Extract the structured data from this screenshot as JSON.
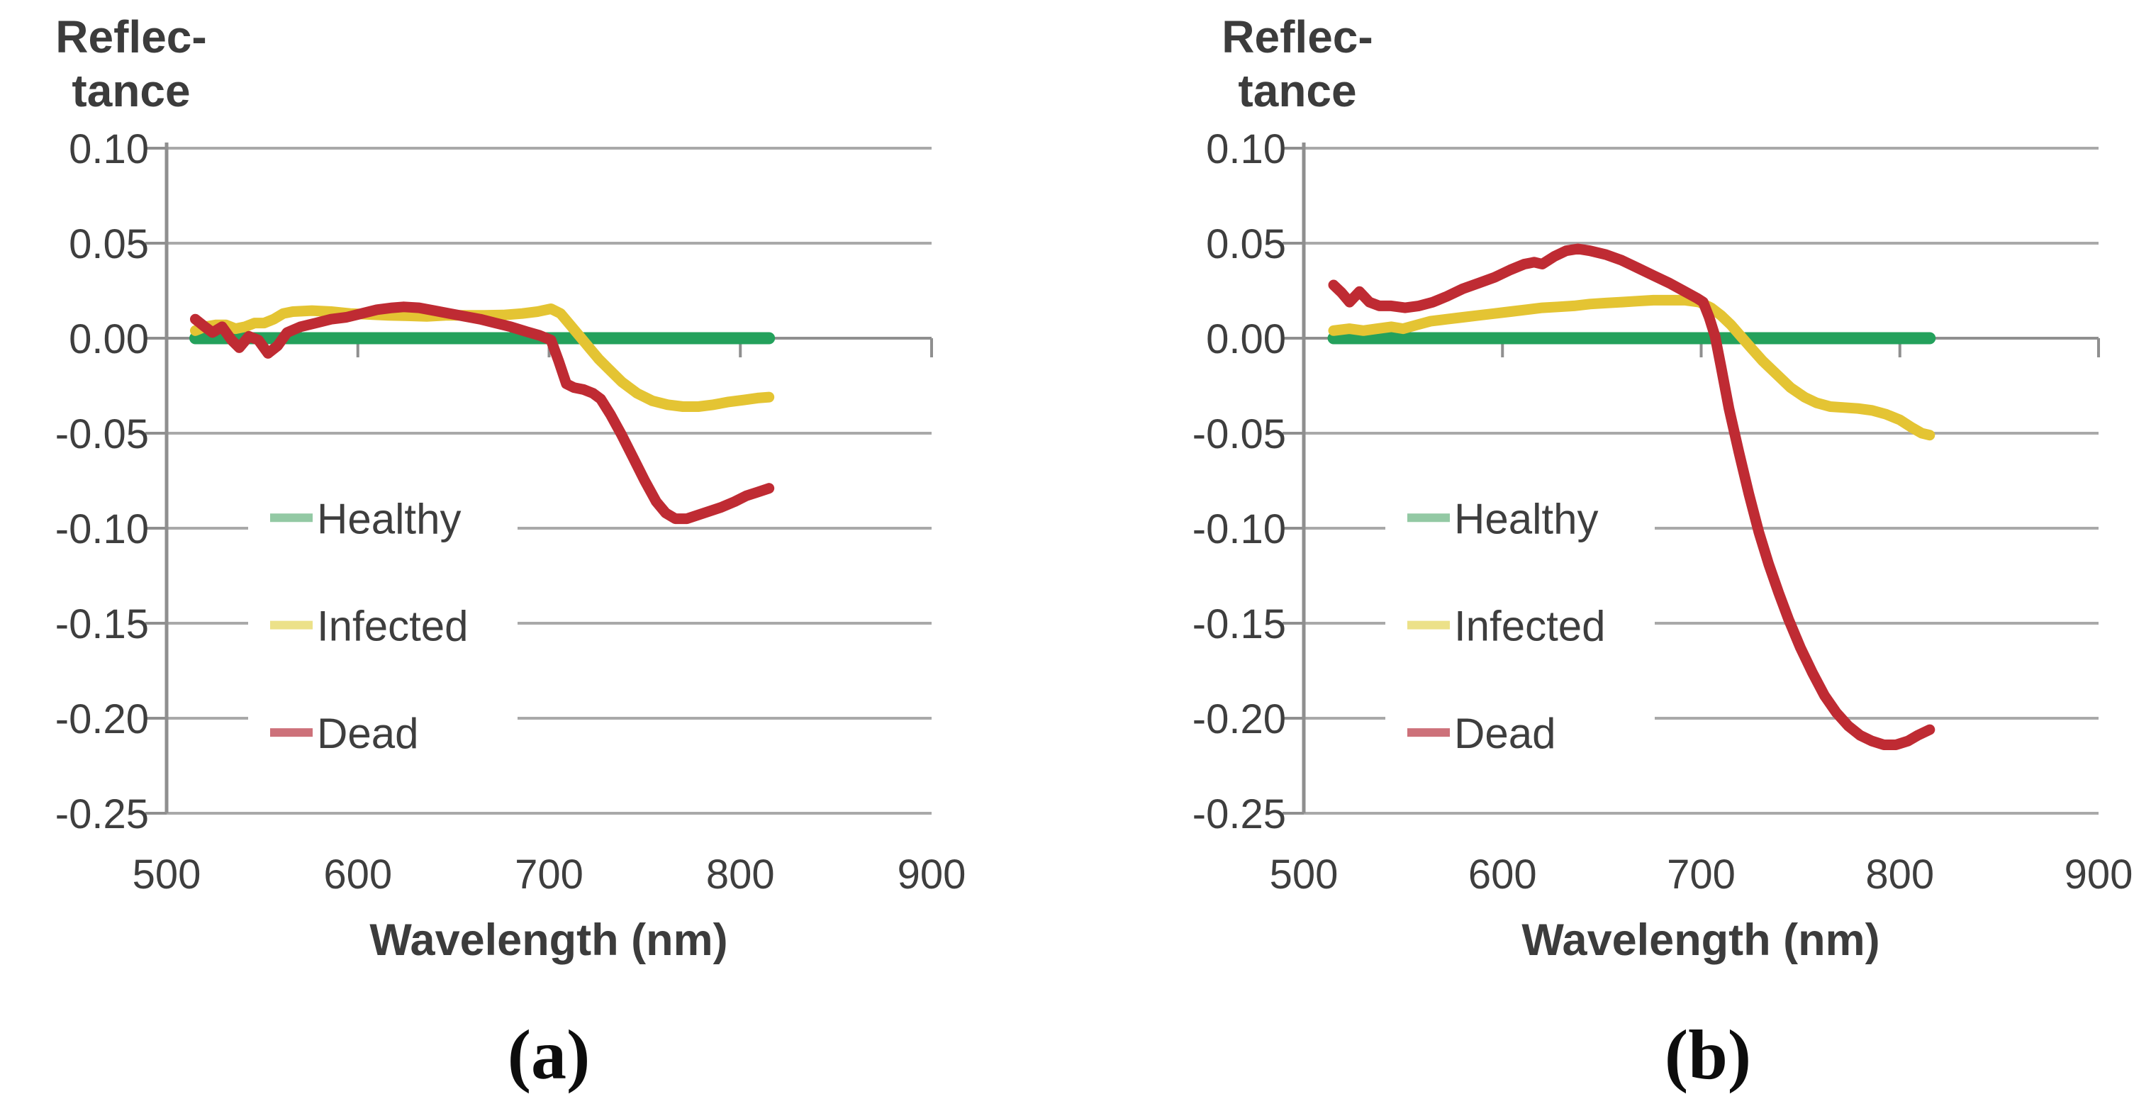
{
  "chart_data": [
    {
      "type": "line",
      "panel_label": "(a)",
      "xlabel": "Wavelength (nm)",
      "ylabel_lines": [
        "Reflec-",
        "tance"
      ],
      "xlim": [
        500,
        900
      ],
      "ylim": [
        -0.25,
        0.1
      ],
      "x_ticks": [
        "500",
        "600",
        "700",
        "800",
        "900"
      ],
      "y_ticks": [
        "0.10",
        "0.05",
        "0.00",
        "-0.05",
        "-0.10",
        "-0.15",
        "-0.20",
        "-0.25"
      ],
      "grid": true,
      "legend_position": "inside-left",
      "colors": {
        "grid": "#a9a9a9",
        "axis": "#8f8f8f",
        "text": "#3e3e3e"
      },
      "series": [
        {
          "name": "Healthy",
          "color": "#24a15c",
          "key_color": "#93c9a4",
          "x": [
            515,
            815
          ],
          "y": [
            0.0,
            0.0
          ]
        },
        {
          "name": "Infected",
          "color": "#e4c433",
          "key_color": "#ece189",
          "x": [
            515,
            520,
            526,
            531,
            536,
            541,
            546,
            551,
            556,
            561,
            566,
            576,
            586,
            596,
            606,
            616,
            626,
            636,
            646,
            656,
            666,
            676,
            686,
            694,
            701,
            706,
            711,
            716,
            721,
            726,
            731,
            738,
            746,
            754,
            762,
            770,
            778,
            786,
            794,
            802,
            809,
            815
          ],
          "y": [
            0.004,
            0.006,
            0.007,
            0.007,
            0.005,
            0.006,
            0.008,
            0.008,
            0.01,
            0.013,
            0.014,
            0.0145,
            0.014,
            0.013,
            0.0125,
            0.012,
            0.0118,
            0.0115,
            0.012,
            0.012,
            0.012,
            0.0122,
            0.013,
            0.014,
            0.0155,
            0.013,
            0.007,
            0.001,
            -0.005,
            -0.011,
            -0.016,
            -0.023,
            -0.029,
            -0.033,
            -0.035,
            -0.036,
            -0.036,
            -0.035,
            -0.0335,
            -0.0325,
            -0.0315,
            -0.031
          ]
        },
        {
          "name": "Dead",
          "color": "#bf2b33",
          "key_color": "#cd717a",
          "x": [
            515,
            520,
            524,
            529,
            534,
            538,
            543,
            548,
            553,
            558,
            563,
            570,
            578,
            586,
            594,
            602,
            610,
            618,
            624,
            632,
            640,
            648,
            656,
            664,
            672,
            680,
            688,
            695,
            701,
            705,
            709,
            713,
            718,
            723,
            727,
            732,
            738,
            744,
            750,
            756,
            761,
            766,
            772,
            778,
            784,
            790,
            797,
            803,
            809,
            815
          ],
          "y": [
            0.01,
            0.006,
            0.003,
            0.006,
            -0.001,
            -0.005,
            0.001,
            -0.001,
            -0.008,
            -0.004,
            0.003,
            0.006,
            0.008,
            0.01,
            0.011,
            0.013,
            0.015,
            0.016,
            0.0165,
            0.016,
            0.0145,
            0.013,
            0.0115,
            0.01,
            0.008,
            0.006,
            0.0035,
            0.0015,
            -0.001,
            -0.012,
            -0.024,
            -0.026,
            -0.027,
            -0.029,
            -0.032,
            -0.04,
            -0.051,
            -0.063,
            -0.075,
            -0.086,
            -0.092,
            -0.095,
            -0.095,
            -0.093,
            -0.091,
            -0.089,
            -0.086,
            -0.083,
            -0.081,
            -0.079
          ]
        }
      ]
    },
    {
      "type": "line",
      "panel_label": "(b)",
      "xlabel": "Wavelength (nm)",
      "ylabel_lines": [
        "Reflec-",
        "tance"
      ],
      "xlim": [
        500,
        900
      ],
      "ylim": [
        -0.25,
        0.1
      ],
      "x_ticks": [
        "500",
        "600",
        "700",
        "800",
        "900"
      ],
      "y_ticks": [
        "0.10",
        "0.05",
        "0.00",
        "-0.05",
        "-0.10",
        "-0.15",
        "-0.20",
        "-0.25"
      ],
      "grid": true,
      "legend_position": "inside-left",
      "colors": {
        "grid": "#a9a9a9",
        "axis": "#8f8f8f",
        "text": "#3e3e3e"
      },
      "series": [
        {
          "name": "Healthy",
          "color": "#24a15c",
          "key_color": "#93c9a4",
          "x": [
            515,
            815
          ],
          "y": [
            0.0,
            0.0
          ]
        },
        {
          "name": "Infected",
          "color": "#e4c433",
          "key_color": "#ece189",
          "x": [
            515,
            523,
            530,
            537,
            544,
            550,
            557,
            564,
            572,
            580,
            588,
            596,
            604,
            612,
            620,
            628,
            636,
            644,
            652,
            660,
            668,
            676,
            684,
            692,
            699,
            705,
            710,
            715,
            720,
            725,
            731,
            738,
            745,
            752,
            758,
            765,
            772,
            779,
            786,
            793,
            800,
            806,
            811,
            815
          ],
          "y": [
            0.004,
            0.005,
            0.004,
            0.005,
            0.006,
            0.005,
            0.007,
            0.009,
            0.01,
            0.011,
            0.012,
            0.013,
            0.014,
            0.015,
            0.016,
            0.0165,
            0.017,
            0.018,
            0.0185,
            0.019,
            0.0195,
            0.02,
            0.02,
            0.02,
            0.019,
            0.016,
            0.012,
            0.007,
            0.001,
            -0.005,
            -0.012,
            -0.019,
            -0.026,
            -0.031,
            -0.034,
            -0.036,
            -0.0365,
            -0.037,
            -0.038,
            -0.04,
            -0.043,
            -0.047,
            -0.05,
            -0.051
          ]
        },
        {
          "name": "Dead",
          "color": "#bf2b33",
          "key_color": "#cd717a",
          "x": [
            515,
            519,
            523,
            528,
            533,
            538,
            544,
            551,
            558,
            565,
            572,
            580,
            588,
            596,
            604,
            611,
            616,
            620,
            626,
            632,
            638,
            644,
            652,
            660,
            668,
            676,
            684,
            691,
            698,
            701,
            704,
            707,
            710,
            714,
            719,
            724,
            729,
            734,
            739,
            744,
            750,
            756,
            762,
            768,
            774,
            780,
            786,
            792,
            798,
            804,
            809,
            815
          ],
          "y": [
            0.028,
            0.024,
            0.019,
            0.0245,
            0.019,
            0.017,
            0.017,
            0.016,
            0.017,
            0.019,
            0.022,
            0.026,
            0.029,
            0.032,
            0.036,
            0.039,
            0.04,
            0.039,
            0.043,
            0.046,
            0.047,
            0.046,
            0.044,
            0.041,
            0.037,
            0.033,
            0.029,
            0.025,
            0.021,
            0.019,
            0.011,
            0.001,
            -0.015,
            -0.037,
            -0.06,
            -0.082,
            -0.102,
            -0.119,
            -0.134,
            -0.148,
            -0.163,
            -0.176,
            -0.188,
            -0.197,
            -0.204,
            -0.209,
            -0.212,
            -0.214,
            -0.214,
            -0.212,
            -0.209,
            -0.206
          ]
        }
      ]
    }
  ]
}
